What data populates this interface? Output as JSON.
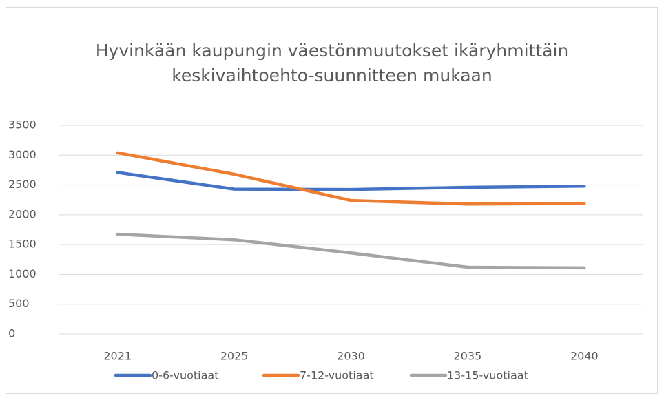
{
  "chart_data": {
    "type": "line",
    "title": [
      "Hyvinkään kaupungin väestönmuutokset ikäryhmittäin",
      "keskivaihtoehto-suunnitteen mukaan"
    ],
    "categories": [
      "2021",
      "2025",
      "2030",
      "2035",
      "2040"
    ],
    "series": [
      {
        "name": "0-6-vuotiaat",
        "color": "#4472c4",
        "values": [
          2710,
          2430,
          2425,
          2460,
          2480
        ]
      },
      {
        "name": "7-12-vuotiaat",
        "color": "#ed7d31",
        "values": [
          3040,
          2680,
          2240,
          2180,
          2190
        ]
      },
      {
        "name": "13-15-vuotiaat",
        "color": "#a5a5a5",
        "values": [
          1675,
          1580,
          1360,
          1120,
          1110
        ]
      }
    ],
    "ylim": [
      0,
      3500
    ],
    "yticks": [
      0,
      500,
      1000,
      1500,
      2000,
      2500,
      3000,
      3500
    ],
    "grid": true,
    "legend": "bottom"
  }
}
